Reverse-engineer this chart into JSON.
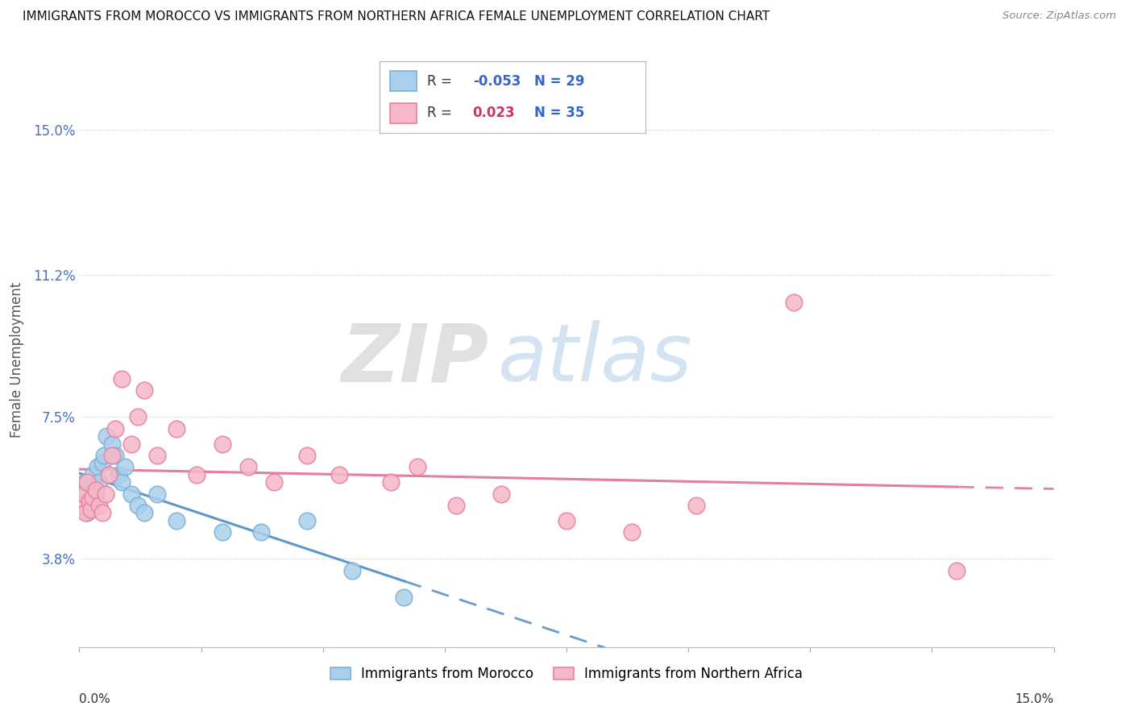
{
  "title": "IMMIGRANTS FROM MOROCCO VS IMMIGRANTS FROM NORTHERN AFRICA FEMALE UNEMPLOYMENT CORRELATION CHART",
  "source": "Source: ZipAtlas.com",
  "ylabel": "Female Unemployment",
  "y_ticks": [
    3.8,
    7.5,
    11.2,
    15.0
  ],
  "x_range": [
    0.0,
    15.0
  ],
  "y_range": [
    1.5,
    16.5
  ],
  "watermark_zip": "ZIP",
  "watermark_atlas": "atlas",
  "series": [
    {
      "label": "Immigrants from Morocco",
      "R": -0.053,
      "N": 29,
      "color": "#aacfec",
      "color_edge": "#7ab0d8",
      "line_color": "#4a8cc4",
      "x": [
        0.05,
        0.08,
        0.1,
        0.12,
        0.15,
        0.18,
        0.2,
        0.22,
        0.25,
        0.28,
        0.3,
        0.35,
        0.38,
        0.42,
        0.5,
        0.55,
        0.6,
        0.65,
        0.7,
        0.8,
        0.9,
        1.0,
        1.2,
        1.5,
        2.2,
        2.8,
        3.5,
        4.2,
        5.0
      ],
      "y": [
        5.5,
        5.2,
        5.8,
        5.0,
        5.3,
        5.4,
        6.0,
        5.7,
        5.5,
        6.2,
        5.8,
        6.3,
        6.5,
        7.0,
        6.8,
        6.5,
        6.0,
        5.8,
        6.2,
        5.5,
        5.2,
        5.0,
        5.5,
        4.8,
        4.5,
        4.5,
        4.8,
        3.5,
        2.8
      ]
    },
    {
      "label": "Immigrants from Northern Africa",
      "R": 0.023,
      "N": 35,
      "color": "#f5b8c8",
      "color_edge": "#e8809a",
      "line_color": "#e07090",
      "x": [
        0.05,
        0.08,
        0.1,
        0.12,
        0.15,
        0.18,
        0.2,
        0.25,
        0.3,
        0.35,
        0.4,
        0.45,
        0.5,
        0.55,
        0.65,
        0.8,
        0.9,
        1.0,
        1.2,
        1.5,
        1.8,
        2.2,
        2.6,
        3.0,
        3.5,
        4.0,
        4.8,
        5.2,
        5.8,
        6.5,
        7.5,
        8.5,
        9.5,
        11.0,
        13.5
      ],
      "y": [
        5.2,
        5.5,
        5.0,
        5.8,
        5.3,
        5.1,
        5.4,
        5.6,
        5.2,
        5.0,
        5.5,
        6.0,
        6.5,
        7.2,
        8.5,
        6.8,
        7.5,
        8.2,
        6.5,
        7.2,
        6.0,
        6.8,
        6.2,
        5.8,
        6.5,
        6.0,
        5.8,
        6.2,
        5.2,
        5.5,
        4.8,
        4.5,
        5.2,
        10.5,
        3.5
      ]
    }
  ]
}
